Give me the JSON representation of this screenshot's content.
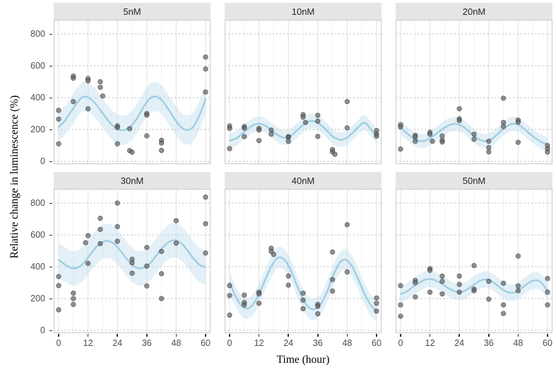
{
  "colors": {
    "background": "#ffffff",
    "strip_bg": "#e5e5e5",
    "strip_text": "#262626",
    "panel_bg": "#ffffff",
    "panel_border": "#c9c9c9",
    "grid_major_vertical": "#e3e3e3",
    "grid_minor_vertical": "#f2f2f2",
    "grid_dotted_horizontal": "#a8a8a8",
    "ribbon": "#bcdcec",
    "smooth_line": "#a0cde2",
    "point_fill": "#616161",
    "point_stroke": "#3d3d3d",
    "tick_label": "#4d4d4d",
    "tick_mark": "#333333",
    "axis_title": "#000000"
  },
  "chart_data": {
    "type": "scatter",
    "subtype": "faceted scatter with loess smooth and confidence ribbon",
    "xlabel": "Time (hour)",
    "ylabel": "Relative change in luminescence (%)",
    "x_ticks": [
      0,
      12,
      24,
      36,
      48,
      60
    ],
    "x_minor_ticks": [
      6,
      18,
      30,
      42,
      54
    ],
    "y_ticks": [
      0,
      200,
      400,
      600,
      800
    ],
    "xlim": [
      -2,
      62
    ],
    "ylim": [
      -18,
      889
    ],
    "grid": "dotted horizontal at y ticks, light solid vertical at x ticks",
    "legend": "none",
    "smooth_t": [
      0,
      2.5,
      5,
      7.5,
      10,
      12.5,
      15,
      17.5,
      20,
      22.5,
      25,
      27.5,
      30,
      32.5,
      35,
      37.5,
      40,
      42.5,
      45,
      47.5,
      50,
      52.5,
      55,
      57.5,
      60
    ],
    "panels": [
      {
        "label": "5nM",
        "row": 0,
        "col": 0,
        "band": 92,
        "smooth_v": [
          215,
          255,
          310,
          368,
          405,
          398,
          362,
          312,
          260,
          218,
          197,
          200,
          228,
          283,
          350,
          398,
          406,
          378,
          322,
          262,
          215,
          196,
          218,
          290,
          390
        ],
        "points": [
          [
            0,
            320
          ],
          [
            0,
            265
          ],
          [
            0,
            110
          ],
          [
            6,
            535
          ],
          [
            6,
            522
          ],
          [
            6,
            375
          ],
          [
            12,
            520
          ],
          [
            12,
            505
          ],
          [
            12,
            330
          ],
          [
            17,
            500
          ],
          [
            17,
            465
          ],
          [
            18,
            410
          ],
          [
            24,
            222
          ],
          [
            24,
            212
          ],
          [
            24,
            110
          ],
          [
            29,
            205
          ],
          [
            29,
            67
          ],
          [
            30,
            57
          ],
          [
            36,
            300
          ],
          [
            36,
            290
          ],
          [
            36,
            160
          ],
          [
            42,
            132
          ],
          [
            42,
            115
          ],
          [
            42,
            68
          ],
          [
            60,
            655
          ],
          [
            60,
            580
          ],
          [
            60,
            435
          ]
        ]
      },
      {
        "label": "10nM",
        "row": 0,
        "col": 1,
        "band": 46,
        "smooth_v": [
          130,
          142,
          172,
          205,
          230,
          236,
          220,
          190,
          162,
          148,
          160,
          194,
          228,
          252,
          250,
          226,
          188,
          152,
          135,
          145,
          175,
          215,
          243,
          205,
          155
        ],
        "points": [
          [
            0,
            222
          ],
          [
            0,
            207
          ],
          [
            0,
            80
          ],
          [
            6,
            218
          ],
          [
            6,
            208
          ],
          [
            6,
            155
          ],
          [
            12,
            207
          ],
          [
            12,
            196
          ],
          [
            12,
            130
          ],
          [
            17,
            196
          ],
          [
            17,
            170
          ],
          [
            24,
            155
          ],
          [
            24,
            150
          ],
          [
            24,
            125
          ],
          [
            30,
            293
          ],
          [
            30,
            278
          ],
          [
            31,
            244
          ],
          [
            36,
            289
          ],
          [
            36,
            252
          ],
          [
            36,
            156
          ],
          [
            42,
            74
          ],
          [
            42,
            59
          ],
          [
            43,
            44
          ],
          [
            48,
            375
          ],
          [
            48,
            210
          ],
          [
            60,
            193
          ],
          [
            60,
            172
          ],
          [
            60,
            158
          ]
        ]
      },
      {
        "label": "20nM",
        "row": 0,
        "col": 2,
        "band": 44,
        "smooth_v": [
          212,
          178,
          147,
          128,
          130,
          150,
          178,
          207,
          228,
          235,
          222,
          194,
          160,
          134,
          127,
          143,
          177,
          212,
          233,
          233,
          210,
          176,
          145,
          121,
          107
        ],
        "points": [
          [
            0,
            230
          ],
          [
            0,
            216
          ],
          [
            0,
            77
          ],
          [
            6,
            163
          ],
          [
            6,
            152
          ],
          [
            6,
            126
          ],
          [
            12,
            182
          ],
          [
            12,
            170
          ],
          [
            13,
            126
          ],
          [
            17,
            159
          ],
          [
            17,
            133
          ],
          [
            17,
            121
          ],
          [
            24,
            330
          ],
          [
            24,
            267
          ],
          [
            24,
            256
          ],
          [
            30,
            170
          ],
          [
            30,
            138
          ],
          [
            36,
            126
          ],
          [
            36,
            86
          ],
          [
            36,
            59
          ],
          [
            42,
            396
          ],
          [
            42,
            244
          ],
          [
            42,
            218
          ],
          [
            48,
            259
          ],
          [
            48,
            246
          ],
          [
            48,
            119
          ],
          [
            60,
            99
          ],
          [
            60,
            79
          ],
          [
            60,
            58
          ]
        ]
      },
      {
        "label": "30nM",
        "row": 1,
        "col": 0,
        "band": 108,
        "smooth_v": [
          443,
          415,
          393,
          393,
          420,
          468,
          518,
          552,
          562,
          545,
          505,
          455,
          412,
          390,
          395,
          425,
          472,
          520,
          555,
          566,
          548,
          505,
          452,
          412,
          397
        ],
        "points": [
          [
            0,
            338
          ],
          [
            0,
            281
          ],
          [
            0,
            129
          ],
          [
            6,
            234
          ],
          [
            6,
            200
          ],
          [
            6,
            163
          ],
          [
            12,
            595
          ],
          [
            11,
            551
          ],
          [
            12,
            421
          ],
          [
            17,
            704
          ],
          [
            17,
            634
          ],
          [
            17,
            545
          ],
          [
            24,
            800
          ],
          [
            24,
            652
          ],
          [
            24,
            560
          ],
          [
            30,
            447
          ],
          [
            30,
            424
          ],
          [
            30,
            359
          ],
          [
            36,
            521
          ],
          [
            36,
            404
          ],
          [
            36,
            279
          ],
          [
            42,
            496
          ],
          [
            42,
            356
          ],
          [
            42,
            200
          ],
          [
            48,
            689
          ],
          [
            48,
            548
          ],
          [
            60,
            837
          ],
          [
            60,
            670
          ],
          [
            60,
            486
          ]
        ]
      },
      {
        "label": "40nM",
        "row": 1,
        "col": 1,
        "band": 66,
        "smooth_v": [
          300,
          212,
          152,
          138,
          172,
          245,
          335,
          415,
          458,
          442,
          378,
          282,
          195,
          142,
          134,
          172,
          252,
          352,
          425,
          444,
          402,
          322,
          232,
          162,
          120
        ],
        "points": [
          [
            0,
            281
          ],
          [
            0,
            219
          ],
          [
            0,
            96
          ],
          [
            6,
            222
          ],
          [
            6,
            175
          ],
          [
            6,
            160
          ],
          [
            12,
            240
          ],
          [
            12,
            229
          ],
          [
            12,
            170
          ],
          [
            17,
            516
          ],
          [
            17,
            496
          ],
          [
            18,
            477
          ],
          [
            24,
            341
          ],
          [
            24,
            284
          ],
          [
            30,
            234
          ],
          [
            30,
            190
          ],
          [
            30,
            136
          ],
          [
            36,
            163
          ],
          [
            36,
            151
          ],
          [
            36,
            104
          ],
          [
            42,
            492
          ],
          [
            42,
            319
          ],
          [
            42,
            247
          ],
          [
            48,
            664
          ],
          [
            48,
            367
          ],
          [
            60,
            204
          ],
          [
            60,
            170
          ],
          [
            60,
            121
          ]
        ]
      },
      {
        "label": "50nM",
        "row": 1,
        "col": 2,
        "band": 52,
        "smooth_v": [
          228,
          245,
          272,
          298,
          318,
          322,
          308,
          285,
          261,
          244,
          242,
          260,
          288,
          312,
          320,
          306,
          276,
          249,
          236,
          245,
          272,
          300,
          315,
          300,
          246
        ],
        "points": [
          [
            0,
            281
          ],
          [
            0,
            160
          ],
          [
            0,
            89
          ],
          [
            6,
            314
          ],
          [
            6,
            299
          ],
          [
            6,
            210
          ],
          [
            12,
            388
          ],
          [
            12,
            377
          ],
          [
            12,
            240
          ],
          [
            17,
            341
          ],
          [
            17,
            308
          ],
          [
            17,
            229
          ],
          [
            24,
            341
          ],
          [
            24,
            289
          ],
          [
            24,
            240
          ],
          [
            30,
            407
          ],
          [
            30,
            259
          ],
          [
            30,
            249
          ],
          [
            36,
            308
          ],
          [
            36,
            196
          ],
          [
            42,
            296
          ],
          [
            42,
            160
          ],
          [
            42,
            106
          ],
          [
            48,
            467
          ],
          [
            48,
            279
          ],
          [
            48,
            249
          ],
          [
            60,
            326
          ],
          [
            60,
            240
          ],
          [
            60,
            160
          ]
        ]
      }
    ]
  }
}
